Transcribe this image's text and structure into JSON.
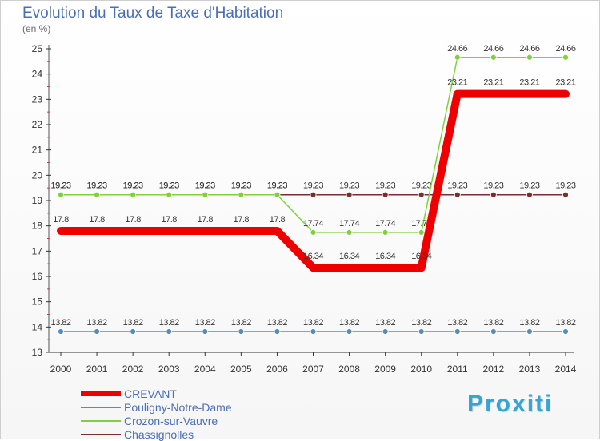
{
  "header": {
    "title": "Evolution du Taux de Taxe d'Habitation",
    "unit": "(en %)"
  },
  "chart_data": {
    "type": "line",
    "title": "Evolution du Taux de Taxe d'Habitation",
    "ylabel": "(en %)",
    "xlabel": "",
    "x": [
      2000,
      2001,
      2002,
      2003,
      2004,
      2005,
      2006,
      2007,
      2008,
      2009,
      2010,
      2011,
      2012,
      2013,
      2014
    ],
    "ylim": [
      13,
      25
    ],
    "yticks": [
      13,
      14,
      15,
      16,
      17,
      18,
      19,
      20,
      21,
      22,
      23,
      24,
      25
    ],
    "grid": false,
    "legend_position": "bottom-left",
    "series": [
      {
        "name": "CREVANT",
        "color": "#ee0000",
        "values": [
          17.8,
          17.8,
          17.8,
          17.8,
          17.8,
          17.8,
          17.8,
          16.34,
          16.34,
          16.34,
          16.34,
          23.21,
          23.21,
          23.21,
          23.21
        ],
        "labels": [
          "17.8",
          "17.8",
          "17.8",
          "17.8",
          "17.8",
          "17.8",
          "17.8",
          "16.34",
          "16.34",
          "16.34",
          "16.34",
          "23.21",
          "23.21",
          "23.21",
          "23.21"
        ]
      },
      {
        "name": "Pouligny-Notre-Dame",
        "color": "#4f8fc0",
        "values": [
          13.82,
          13.82,
          13.82,
          13.82,
          13.82,
          13.82,
          13.82,
          13.82,
          13.82,
          13.82,
          13.82,
          13.82,
          13.82,
          13.82,
          13.82
        ],
        "labels": [
          "13.82",
          "13.82",
          "13.82",
          "13.82",
          "13.82",
          "13.82",
          "13.82",
          "13.82",
          "13.82",
          "13.82",
          "13.82",
          "13.82",
          "13.82",
          "13.82",
          "13.82"
        ]
      },
      {
        "name": "Crozon-sur-Vauvre",
        "color": "#7fd13b",
        "values": [
          19.23,
          19.23,
          19.23,
          19.23,
          19.23,
          19.23,
          19.23,
          17.74,
          17.74,
          17.74,
          17.74,
          24.66,
          24.66,
          24.66,
          24.66
        ],
        "labels": [
          "19.23",
          "19.23",
          "19.23",
          "19.23",
          "19.23",
          "19.23",
          "19.23",
          "17.74",
          "17.74",
          "17.74",
          "17.74",
          "24.66",
          "24.66",
          "24.66",
          "24.66"
        ]
      },
      {
        "name": "Chassignolles",
        "color": "#7a2e2e",
        "values": [
          19.23,
          19.23,
          19.23,
          19.23,
          19.23,
          19.23,
          19.23,
          19.23,
          19.23,
          19.23,
          19.23,
          19.23,
          19.23,
          19.23,
          19.23
        ],
        "labels": [
          "19.23",
          "19.23",
          "19.23",
          "19.23",
          "19.23",
          "19.23",
          "19.23",
          "19.23",
          "19.23",
          "19.23",
          "19.23",
          "19.23",
          "19.23",
          "19.23",
          "19.23"
        ]
      }
    ]
  },
  "legend": {
    "items": [
      {
        "label": "CREVANT",
        "color": "#ee0000"
      },
      {
        "label": "Pouligny-Notre-Dame",
        "color": "#4f8fc0"
      },
      {
        "label": "Crozon-sur-Vauvre",
        "color": "#7fd13b"
      },
      {
        "label": "Chassignolles",
        "color": "#7a2e2e"
      }
    ]
  },
  "branding": {
    "logo_text": "Proxiti"
  }
}
